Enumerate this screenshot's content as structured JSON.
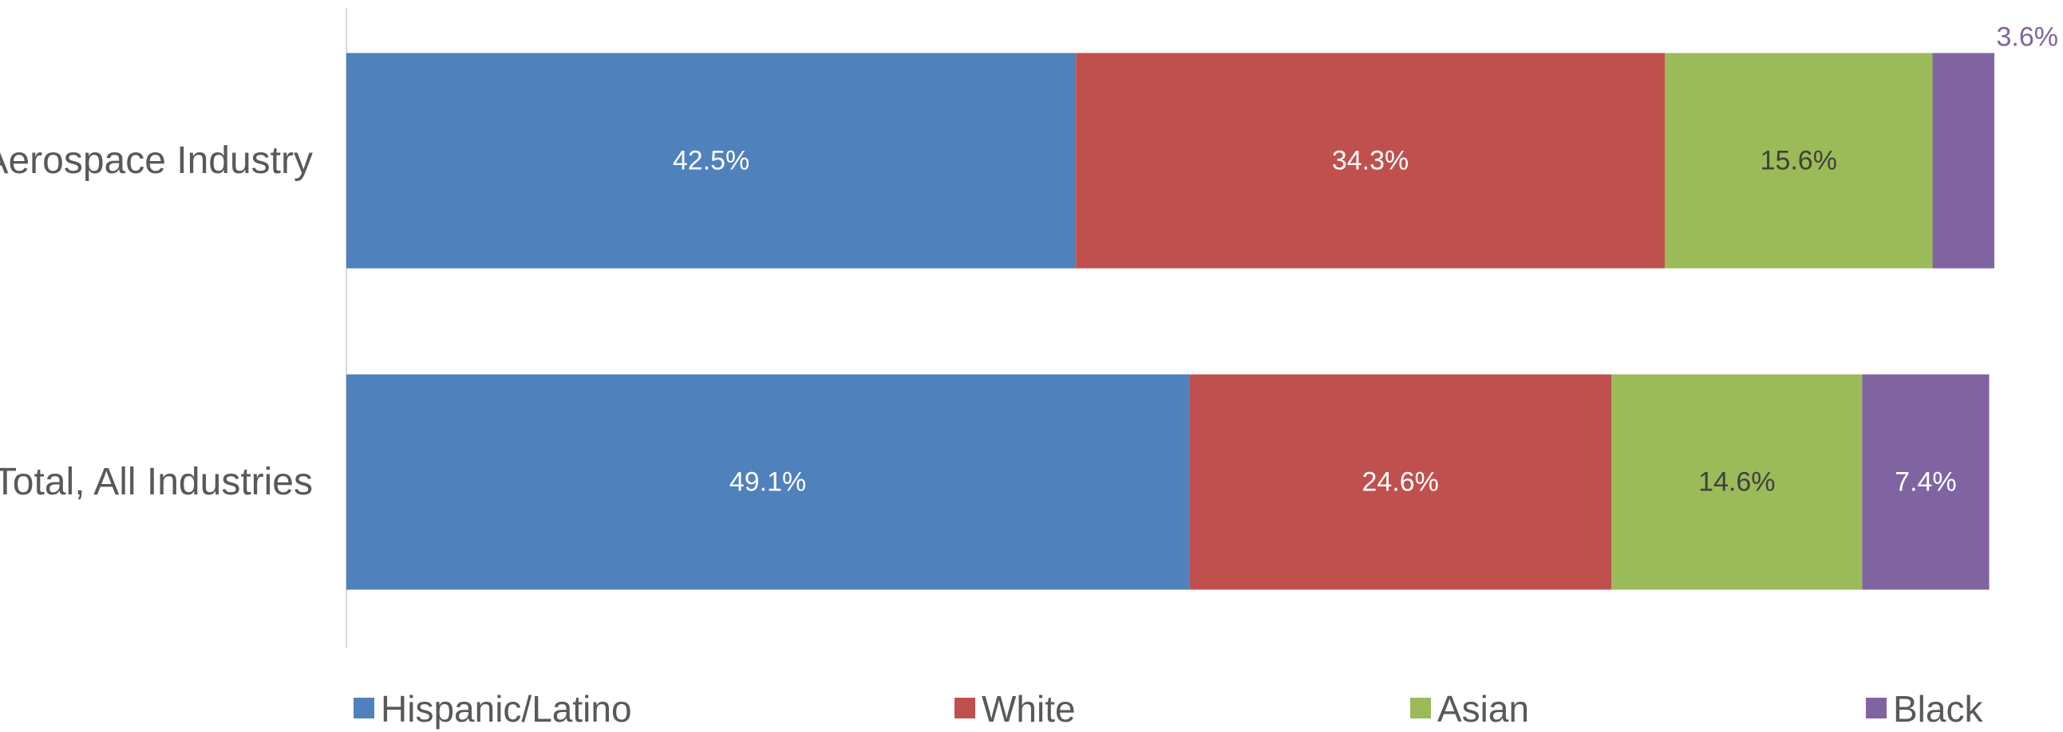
{
  "chart_data": {
    "type": "bar",
    "orientation": "horizontal",
    "stacked": true,
    "categories": [
      "Aerospace Industry",
      "Total, All Industries"
    ],
    "series": [
      {
        "name": "Hispanic/Latino",
        "values": [
          42.5,
          49.1
        ],
        "labels": [
          "42.5%",
          "49.1%"
        ],
        "color": "#4F81BD",
        "label_color": "#FFFFFF"
      },
      {
        "name": "White",
        "values": [
          34.3,
          24.6
        ],
        "labels": [
          "34.3%",
          "24.6%"
        ],
        "color": "#C0504D",
        "label_color": "#FFFFFF"
      },
      {
        "name": "Asian",
        "values": [
          15.6,
          14.6
        ],
        "labels": [
          "15.6%",
          "14.6%"
        ],
        "color": "#9BBB59",
        "label_color": "#404040"
      },
      {
        "name": "Black",
        "values": [
          3.6,
          7.4
        ],
        "labels": [
          "3.6%",
          "7.4%"
        ],
        "color": "#8064A2",
        "label_color": "#FFFFFF",
        "outside_label_color": "#8064A2"
      }
    ],
    "xlim": [
      0,
      100
    ],
    "legend": "bottom",
    "grid": false
  }
}
